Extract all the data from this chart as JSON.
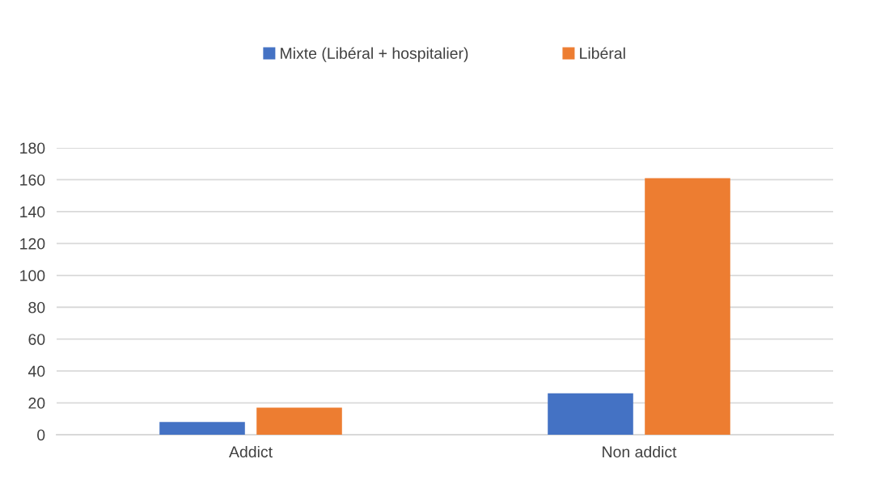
{
  "chart_data": {
    "type": "bar",
    "categories": [
      "Addict",
      "Non addict"
    ],
    "series": [
      {
        "name": "Mixte (Libéral + hospitalier)",
        "color": "#4472c4",
        "values": [
          8,
          26
        ]
      },
      {
        "name": "Libéral",
        "color": "#ed7d31",
        "values": [
          17,
          161
        ]
      }
    ],
    "ylim": [
      0,
      180
    ],
    "yticks": [
      0,
      20,
      40,
      60,
      80,
      100,
      120,
      140,
      160,
      180
    ],
    "grid": "y",
    "legend": "top"
  }
}
